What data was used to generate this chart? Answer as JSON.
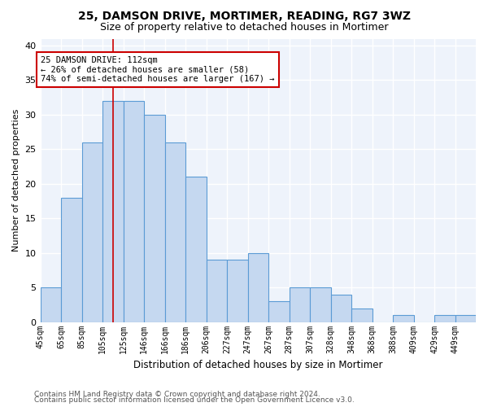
{
  "title1": "25, DAMSON DRIVE, MORTIMER, READING, RG7 3WZ",
  "title2": "Size of property relative to detached houses in Mortimer",
  "xlabel": "Distribution of detached houses by size in Mortimer",
  "ylabel": "Number of detached properties",
  "categories": [
    "45sqm",
    "65sqm",
    "85sqm",
    "105sqm",
    "125sqm",
    "146sqm",
    "166sqm",
    "186sqm",
    "206sqm",
    "227sqm",
    "247sqm",
    "267sqm",
    "287sqm",
    "307sqm",
    "328sqm",
    "348sqm",
    "368sqm",
    "388sqm",
    "409sqm",
    "429sqm",
    "449sqm"
  ],
  "values": [
    5,
    18,
    26,
    32,
    32,
    30,
    26,
    21,
    9,
    9,
    10,
    3,
    5,
    5,
    4,
    2,
    0,
    1,
    0,
    1,
    1
  ],
  "bar_color": "#c5d8f0",
  "bar_edge_color": "#5b9bd5",
  "property_bin_index": 3,
  "annotation_text": "25 DAMSON DRIVE: 112sqm\n← 26% of detached houses are smaller (58)\n74% of semi-detached houses are larger (167) →",
  "annotation_box_color": "#ffffff",
  "annotation_box_edge_color": "#cc0000",
  "footer1": "Contains HM Land Registry data © Crown copyright and database right 2024.",
  "footer2": "Contains public sector information licensed under the Open Government Licence v3.0.",
  "ylim": [
    0,
    41
  ],
  "yticks": [
    0,
    5,
    10,
    15,
    20,
    25,
    30,
    35,
    40
  ],
  "bg_color": "#eef3fb",
  "grid_color": "#ffffff",
  "title1_fontsize": 10,
  "title2_fontsize": 9
}
